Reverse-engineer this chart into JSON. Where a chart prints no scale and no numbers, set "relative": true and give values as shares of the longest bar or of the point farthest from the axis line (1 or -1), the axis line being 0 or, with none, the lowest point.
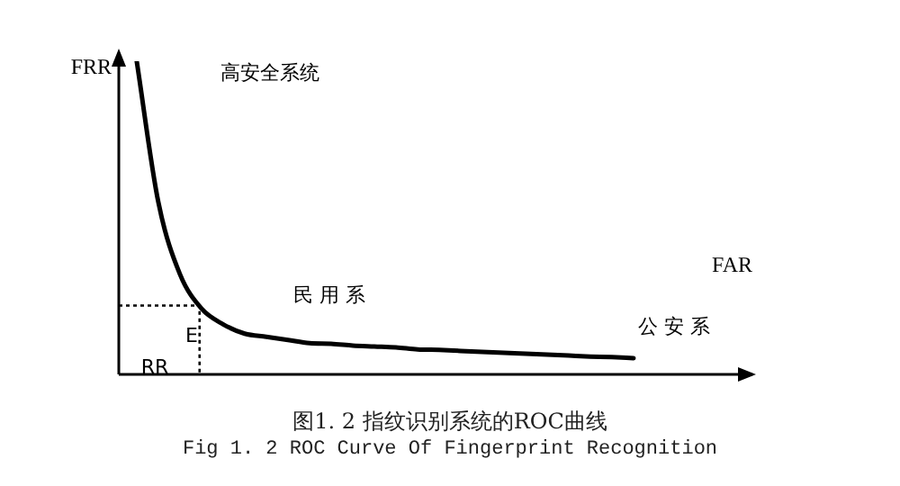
{
  "chart_data": {
    "type": "line",
    "title": "图1. 2  指纹识别系统的ROC曲线",
    "subtitle": "Fig 1. 2 ROC Curve Of Fingerprint Recognition",
    "xlabel": "FAR",
    "ylabel": "FRR",
    "relative": true,
    "tick_labels": false,
    "legend": false,
    "marker": "none",
    "line_style": "solid",
    "categories": [
      null,
      null,
      null,
      null,
      null,
      null,
      null,
      null,
      null,
      null,
      null,
      null,
      null,
      null,
      null,
      null,
      null,
      null,
      null,
      null,
      null,
      null,
      null,
      null
    ],
    "series": [
      {
        "color": "#000000",
        "values": [
          1,
          0.55,
          0.32,
          0.21,
          0.16,
          0.13,
          0.12,
          0.11,
          0.1,
          0.098,
          0.092,
          0.089,
          0.086,
          0.08,
          0.078,
          0.075,
          0.072,
          0.069,
          0.066,
          0.063,
          0.06,
          0.057,
          0.055,
          0.052
        ]
      }
    ],
    "ref_lines": [
      {
        "axis": "y",
        "value": 0.22,
        "line_style": "dotted"
      }
    ],
    "annotations": [
      "高安全系统",
      "民 用 系",
      "公 安 系",
      "E",
      "RR"
    ]
  }
}
